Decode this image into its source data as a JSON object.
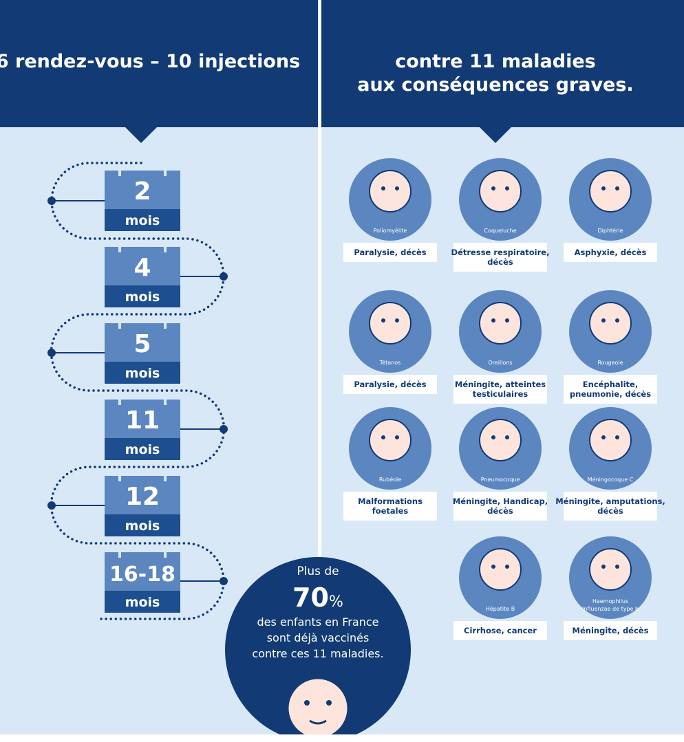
{
  "left": {
    "title": "6 rendez-vous – 10 injections"
  },
  "right": {
    "title_lines": [
      "contre 11 maladies",
      "aux conséquences graves."
    ]
  },
  "appointments": [
    {
      "number": "2",
      "unit": "mois"
    },
    {
      "number": "4",
      "unit": "mois"
    },
    {
      "number": "5",
      "unit": "mois"
    },
    {
      "number": "11",
      "unit": "mois"
    },
    {
      "number": "12",
      "unit": "mois"
    },
    {
      "number": "16-18",
      "unit": "mois"
    }
  ],
  "diseases": [
    {
      "name": [
        "Poliomyélite"
      ],
      "consequence": [
        "Paralysie, décès"
      ]
    },
    {
      "name": [
        "Coqueluche"
      ],
      "consequence": [
        "Détresse respiratoire,",
        "décès"
      ]
    },
    {
      "name": [
        "Diphtérie"
      ],
      "consequence": [
        "Asphyxie, décès"
      ]
    },
    {
      "name": [
        "Tétanos"
      ],
      "consequence": [
        "Paralysie, décès"
      ]
    },
    {
      "name": [
        "Oreillons"
      ],
      "consequence": [
        "Méningite, atteintes",
        "testiculaires"
      ]
    },
    {
      "name": [
        "Rougeole"
      ],
      "consequence": [
        "Encéphalite,",
        "pneumonie, décès"
      ]
    },
    {
      "name": [
        "Rubéole"
      ],
      "consequence": [
        "Malformations",
        "foetales"
      ]
    },
    {
      "name": [
        "Pneumocoque"
      ],
      "consequence": [
        "Méningite, Handicap,",
        "décès"
      ]
    },
    {
      "name": [
        "Méningocoque C"
      ],
      "consequence": [
        "Méningite, amputations,",
        "décès"
      ]
    },
    {
      "name": [
        "Hépatite B"
      ],
      "consequence": [
        "Cirrhose, cancer"
      ]
    },
    {
      "name": [
        "Haemophilus",
        "Influenzae de type b"
      ],
      "consequence": [
        "Méningite, décès"
      ]
    }
  ],
  "stat": {
    "intro": "Plus de",
    "number": "70",
    "unit": "%",
    "lines": [
      "des enfants en France",
      "sont déjà vaccinés",
      "contre ces 11 maladies."
    ]
  }
}
